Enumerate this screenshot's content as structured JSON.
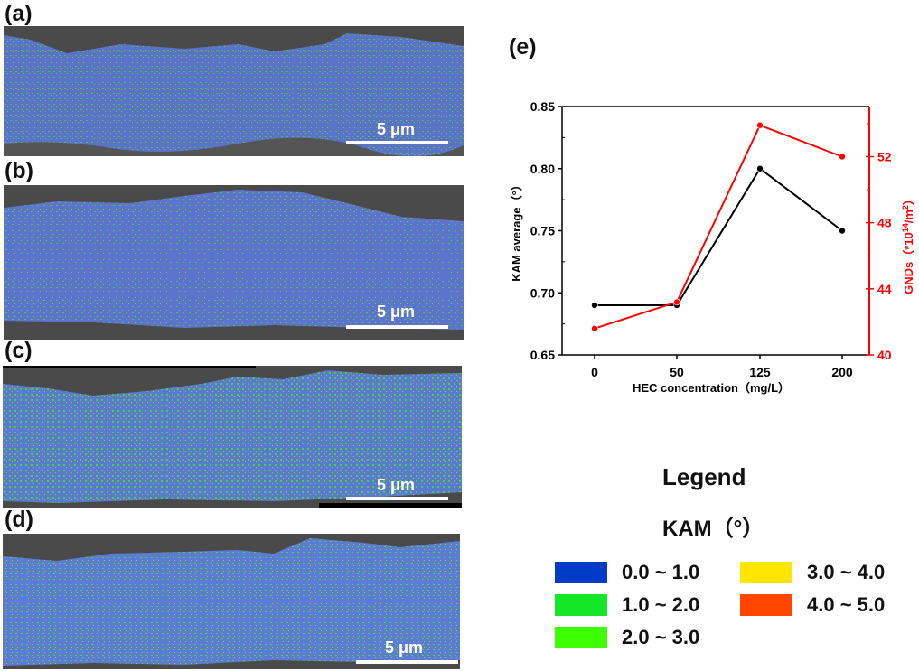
{
  "panels": [
    {
      "label": "(a)",
      "scale_bar": "5 μm"
    },
    {
      "label": "(b)",
      "scale_bar": "5 μm"
    },
    {
      "label": "(c)",
      "scale_bar": "5 μm"
    },
    {
      "label": "(d)",
      "scale_bar": "5 μm"
    }
  ],
  "chart_label": "(e)",
  "chart_data": {
    "type": "line",
    "title": "",
    "categories": [
      "0",
      "50",
      "125",
      "200"
    ],
    "xlabel": "HEC concentration（mg/L）",
    "ylabel": "KAM average（°）",
    "ylabel_right": "GNDs（*10^14/m^2）",
    "ylim": [
      0.65,
      0.85
    ],
    "ylim_right": [
      40,
      55
    ],
    "yticks": [
      "0.65",
      "0.70",
      "0.75",
      "0.80",
      "0.85"
    ],
    "yticks_right": [
      "40",
      "44",
      "48",
      "52"
    ],
    "series": [
      {
        "name": "KAM average",
        "axis": "left",
        "color": "#000000",
        "values": [
          0.69,
          0.69,
          0.8,
          0.75
        ]
      },
      {
        "name": "GNDs",
        "axis": "right",
        "color": "#ff0000",
        "values": [
          41.6,
          43.2,
          53.9,
          52.0
        ]
      }
    ],
    "grid": false,
    "legend_position": "none"
  },
  "legend": {
    "title": "Legend",
    "subtitle": "KAM（°）",
    "items": [
      {
        "range": "0.0 ~ 1.0",
        "color": "#003cc8"
      },
      {
        "range": "1.0 ~ 2.0",
        "color": "#14e628"
      },
      {
        "range": "2.0 ~ 3.0",
        "color": "#3cff00"
      },
      {
        "range": "3.0 ~ 4.0",
        "color": "#ffe600"
      },
      {
        "range": "4.0 ~ 5.0",
        "color": "#ff4600"
      }
    ]
  }
}
